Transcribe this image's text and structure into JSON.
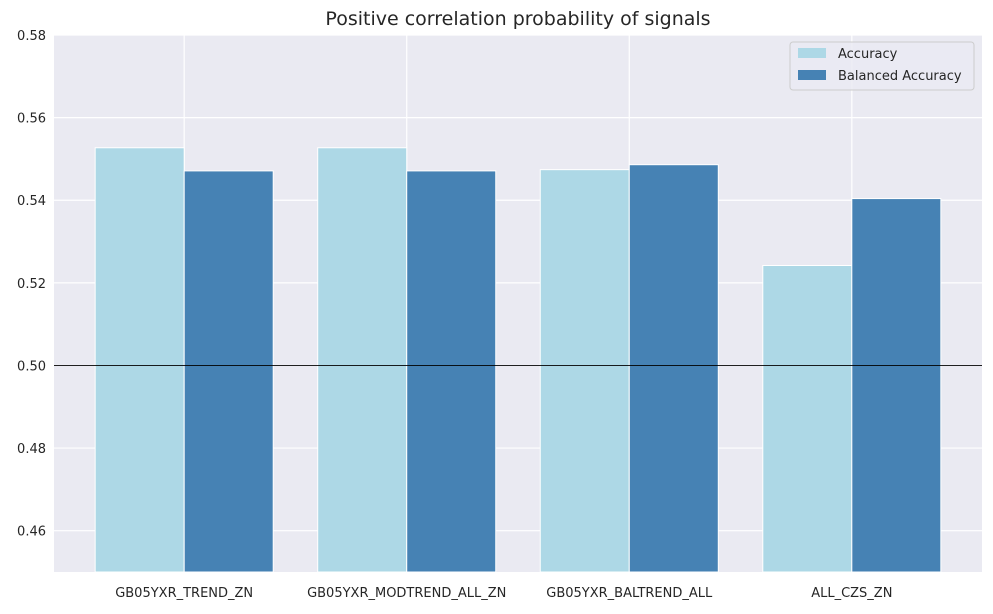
{
  "chart_data": {
    "type": "bar",
    "title": "Positive correlation probability of signals",
    "categories": [
      "GB05YXR_TREND_ZN",
      "GB05YXR_MODTREND_ALL_ZN",
      "GB05YXR_BALTREND_ALL",
      "ALL_CZS_ZN"
    ],
    "series": [
      {
        "name": "Accuracy",
        "color": "#add8e6",
        "values": [
          0.5527,
          0.5527,
          0.5474,
          0.5242
        ]
      },
      {
        "name": "Balanced Accuracy",
        "color": "#4682b4",
        "values": [
          0.5471,
          0.5471,
          0.5486,
          0.5404
        ]
      }
    ],
    "ylim": [
      0.45,
      0.58
    ],
    "yticks": [
      0.46,
      0.48,
      0.5,
      0.52,
      0.54,
      0.56,
      0.58
    ],
    "ytick_labels": [
      "0.46",
      "0.48",
      "0.50",
      "0.52",
      "0.54",
      "0.56",
      "0.58"
    ],
    "reference_line": 0.5,
    "xlabel": "",
    "ylabel": "",
    "grid": true,
    "legend_position": "top-right"
  }
}
